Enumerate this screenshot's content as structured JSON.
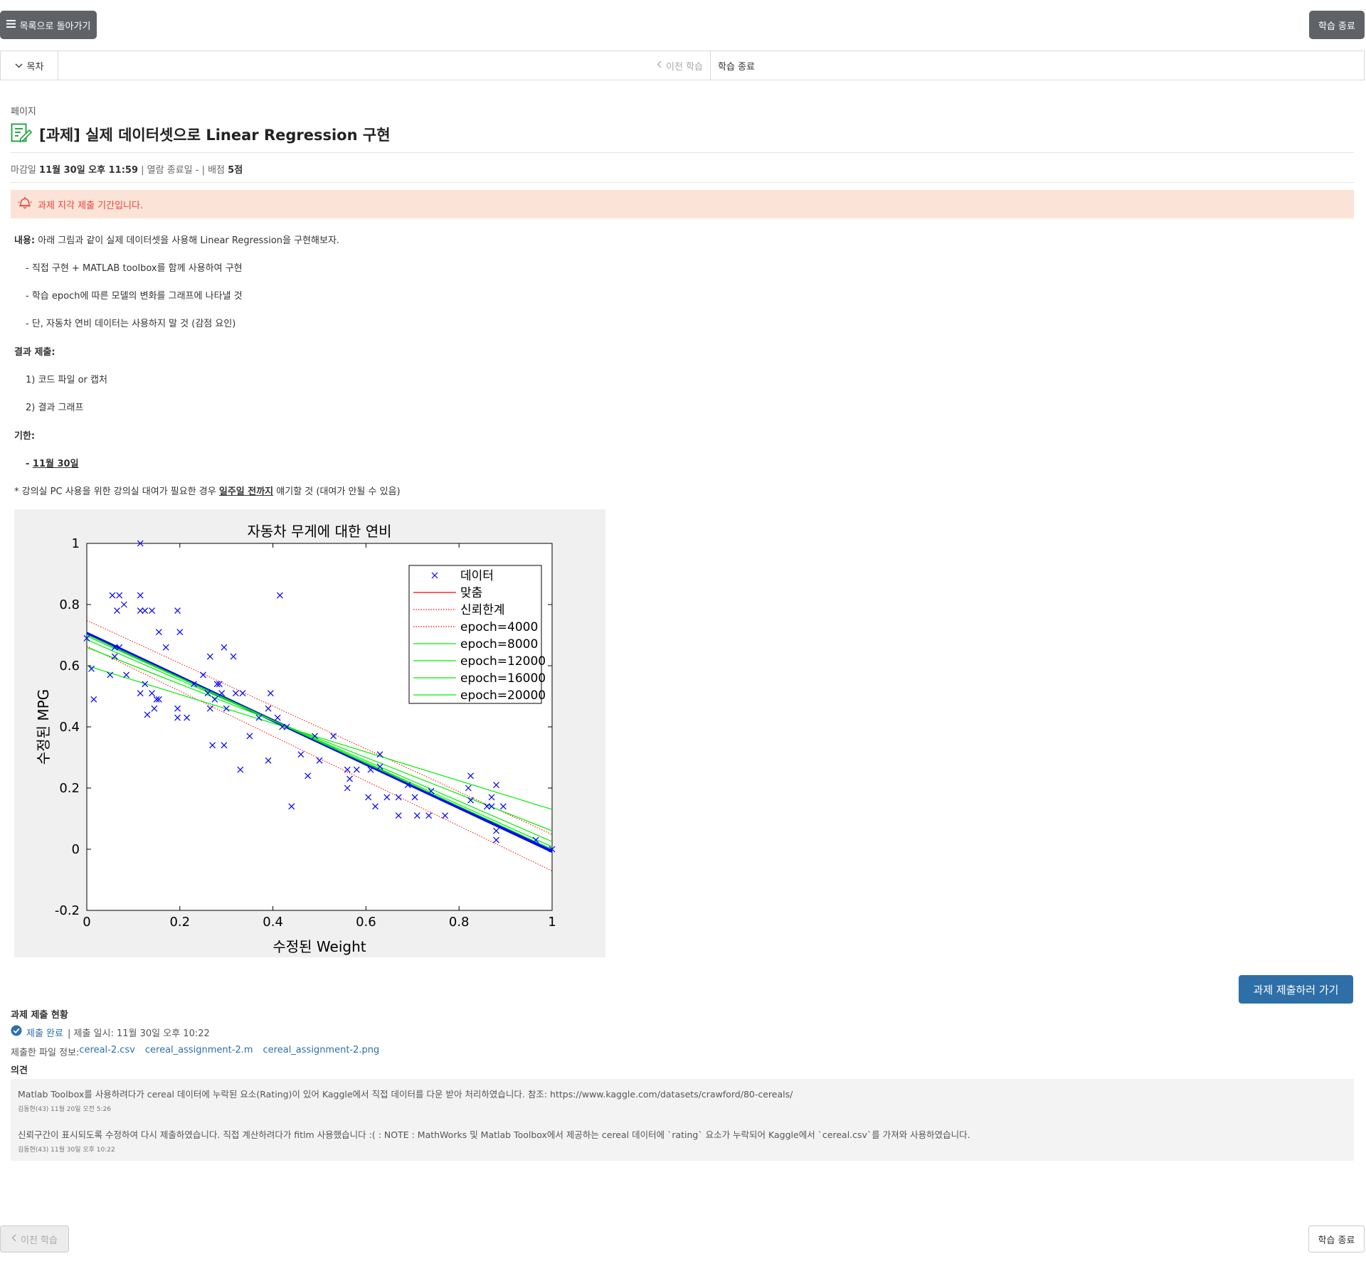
{
  "header": {
    "back_button": "목록으로 돌아가기",
    "end_button": "학습 종료"
  },
  "navbar": {
    "toc": "목차",
    "prev": "이전 학습",
    "next": "학습 종료"
  },
  "page": {
    "label": "페이지",
    "title": "[과제] 실제 데이터셋으로 Linear Regression 구현",
    "meta": {
      "deadline_label": "마감일",
      "deadline": "11월 30일 오후 11:59",
      "view_end_label": "| 열람 종료일 -",
      "score_label": "| 배점",
      "score": "5점"
    },
    "alert": "과제 지각 제출 기간입니다."
  },
  "content": {
    "l1_bold": "내용:",
    "l1_text": " 아래 그림과 같이 실제 데이터셋을 사용해 Linear Regression을 구현해보자.",
    "l2": "- 직접 구현 + MATLAB toolbox를 함께 사용하여 구현",
    "l3": "- 학습 epoch에 따른 모델의 변화를 그래프에 나타낼 것",
    "l4": "- 단, 자동차 연비 데이터는 사용하지 말 것 (감점 요인)",
    "l5_bold": "결과 제출:",
    "l6": "1) 코드 파일 or 캡처",
    "l7": "2) 결과 그래프",
    "l8_bold": "기한:",
    "l9_prefix": "- ",
    "l9_date": "11월 30일",
    "l10_a": "* 강의실 PC 사용을 위한 강의실 대여가 필요한 경우 ",
    "l10_b": "일주일 전까지",
    "l10_c": " 얘기할 것 (대여가 안될 수 있음)"
  },
  "chart_data": {
    "type": "scatter",
    "title": "자동차 무게에 대한 연비",
    "xlabel": "수정된 Weight",
    "ylabel": "수정된 MPG",
    "xlim": [
      0,
      1
    ],
    "ylim": [
      -0.2,
      1
    ],
    "xticks": [
      "0",
      "0.2",
      "0.4",
      "0.6",
      "0.8",
      "1"
    ],
    "yticks": [
      "-0.2",
      "0",
      "0.2",
      "0.4",
      "0.6",
      "0.8",
      "1"
    ],
    "legend_position": "top-right",
    "legend": [
      "데이터",
      "맞춤",
      "신뢰한계",
      "epoch=4000",
      "epoch=8000",
      "epoch=12000",
      "epoch=16000",
      "epoch=20000"
    ],
    "points": [
      [
        0.0,
        0.69
      ],
      [
        0.01,
        0.59
      ],
      [
        0.015,
        0.49
      ],
      [
        0.05,
        0.57
      ],
      [
        0.055,
        0.83
      ],
      [
        0.06,
        0.63
      ],
      [
        0.06,
        0.66
      ],
      [
        0.065,
        0.78
      ],
      [
        0.07,
        0.83
      ],
      [
        0.07,
        0.66
      ],
      [
        0.08,
        0.8
      ],
      [
        0.085,
        0.57
      ],
      [
        0.115,
        1.0
      ],
      [
        0.115,
        0.83
      ],
      [
        0.115,
        0.78
      ],
      [
        0.115,
        0.51
      ],
      [
        0.125,
        0.54
      ],
      [
        0.125,
        0.78
      ],
      [
        0.13,
        0.44
      ],
      [
        0.14,
        0.78
      ],
      [
        0.14,
        0.51
      ],
      [
        0.145,
        0.46
      ],
      [
        0.15,
        0.49
      ],
      [
        0.155,
        0.71
      ],
      [
        0.155,
        0.49
      ],
      [
        0.17,
        0.66
      ],
      [
        0.195,
        0.78
      ],
      [
        0.195,
        0.46
      ],
      [
        0.195,
        0.43
      ],
      [
        0.2,
        0.71
      ],
      [
        0.215,
        0.43
      ],
      [
        0.23,
        0.54
      ],
      [
        0.25,
        0.57
      ],
      [
        0.26,
        0.51
      ],
      [
        0.265,
        0.63
      ],
      [
        0.265,
        0.46
      ],
      [
        0.27,
        0.34
      ],
      [
        0.275,
        0.49
      ],
      [
        0.28,
        0.54
      ],
      [
        0.285,
        0.54
      ],
      [
        0.29,
        0.51
      ],
      [
        0.295,
        0.34
      ],
      [
        0.295,
        0.66
      ],
      [
        0.3,
        0.46
      ],
      [
        0.315,
        0.63
      ],
      [
        0.32,
        0.51
      ],
      [
        0.33,
        0.26
      ],
      [
        0.335,
        0.51
      ],
      [
        0.35,
        0.37
      ],
      [
        0.37,
        0.43
      ],
      [
        0.39,
        0.29
      ],
      [
        0.39,
        0.46
      ],
      [
        0.395,
        0.51
      ],
      [
        0.41,
        0.43
      ],
      [
        0.415,
        0.83
      ],
      [
        0.42,
        0.4
      ],
      [
        0.43,
        0.4
      ],
      [
        0.44,
        0.14
      ],
      [
        0.46,
        0.31
      ],
      [
        0.475,
        0.24
      ],
      [
        0.49,
        0.37
      ],
      [
        0.5,
        0.29
      ],
      [
        0.53,
        0.37
      ],
      [
        0.56,
        0.26
      ],
      [
        0.56,
        0.2
      ],
      [
        0.565,
        0.23
      ],
      [
        0.58,
        0.26
      ],
      [
        0.605,
        0.17
      ],
      [
        0.61,
        0.26
      ],
      [
        0.62,
        0.14
      ],
      [
        0.63,
        0.31
      ],
      [
        0.63,
        0.27
      ],
      [
        0.645,
        0.17
      ],
      [
        0.67,
        0.11
      ],
      [
        0.67,
        0.17
      ],
      [
        0.69,
        0.21
      ],
      [
        0.705,
        0.17
      ],
      [
        0.71,
        0.11
      ],
      [
        0.735,
        0.11
      ],
      [
        0.74,
        0.19
      ],
      [
        0.77,
        0.11
      ],
      [
        0.82,
        0.2
      ],
      [
        0.825,
        0.24
      ],
      [
        0.825,
        0.16
      ],
      [
        0.86,
        0.14
      ],
      [
        0.87,
        0.17
      ],
      [
        0.87,
        0.14
      ],
      [
        0.88,
        0.21
      ],
      [
        0.88,
        0.06
      ],
      [
        0.88,
        0.03
      ],
      [
        0.895,
        0.14
      ],
      [
        0.965,
        0.03
      ],
      [
        1.0,
        0.0
      ]
    ],
    "series": [
      {
        "name": "맞춤",
        "color": "#0000ff",
        "x": [
          0,
          1
        ],
        "y": [
          0.706,
          -0.007
        ],
        "style": "thick"
      },
      {
        "name": "신뢰한계",
        "color": "#ff0000",
        "x": [
          0,
          1
        ],
        "y": [
          0.748,
          0.048
        ],
        "style": "dotted"
      },
      {
        "name": "신뢰한계",
        "color": "#ff0000",
        "x": [
          0,
          1
        ],
        "y": [
          0.664,
          -0.071
        ],
        "style": "dotted"
      },
      {
        "name": "epoch=4000",
        "color": "#00ee00",
        "x": [
          0,
          1
        ],
        "y": [
          0.6,
          0.13
        ],
        "style": "solid"
      },
      {
        "name": "epoch=8000",
        "color": "#00ee00",
        "x": [
          0,
          1
        ],
        "y": [
          0.66,
          0.06
        ],
        "style": "solid"
      },
      {
        "name": "epoch=12000",
        "color": "#00ee00",
        "x": [
          0,
          1
        ],
        "y": [
          0.685,
          0.025
        ],
        "style": "solid"
      },
      {
        "name": "epoch=16000",
        "color": "#00ee00",
        "x": [
          0,
          1
        ],
        "y": [
          0.697,
          0.008
        ],
        "style": "solid"
      },
      {
        "name": "epoch=20000",
        "color": "#00ee00",
        "x": [
          0,
          1
        ],
        "y": [
          0.702,
          0.0
        ],
        "style": "solid"
      }
    ]
  },
  "submit_button": "과제 제출하러 가기",
  "status": {
    "title": "과제 제출 현황",
    "done": "제출 완료",
    "time": "| 제출 일시: 11월 30일 오후 10:22",
    "files_label": "제출한 파일 정보:",
    "files": [
      "cereal-2.csv",
      "cereal_assignment-2.m",
      "cereal_assignment-2.png"
    ]
  },
  "opinion": {
    "title": "의견",
    "items": [
      {
        "text": "Matlab Toolbox를 사용하려다가 cereal 데이터에 누락된 요소(Rating)이 있어 Kaggle에서 직접 데이터를 다운 받아 처리하였습니다. 참조: https://www.kaggle.com/datasets/crawford/80-cereals/",
        "meta": "김동현(43) 11월 20일 오전 5:26"
      },
      {
        "text": "신뢰구간이 표시되도록 수정하여 다시 제출하였습니다. 직접 계산하려다가 fitlm 사용했습니다 :( : NOTE : MathWorks 및 Matlab Toolbox에서 제공하는 cereal 데이터에 `rating` 요소가 누락되어 Kaggle에서 `cereal.csv`를 가져와 사용하였습니다.",
        "meta": "김동현(43) 11월 30일 오후 10:22"
      }
    ]
  },
  "footer": {
    "prev": "이전 학습",
    "end": "학습 종료"
  },
  "colors": {
    "accent": "#2e6fa8",
    "alert_bg": "#fbe3d7",
    "alert_text": "#e8453c",
    "dark_button": "#5f6368"
  }
}
